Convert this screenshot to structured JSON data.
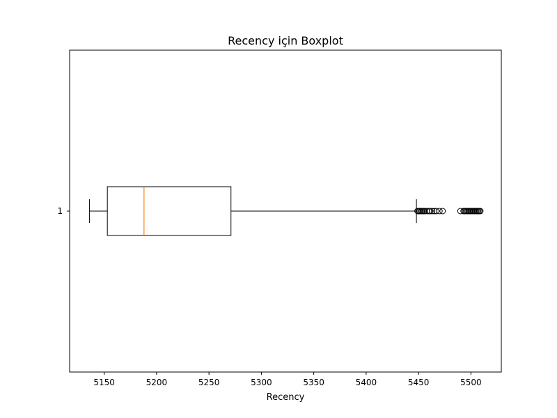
{
  "chart_data": {
    "type": "boxplot",
    "orientation": "horizontal",
    "title": "Recency için Boxplot",
    "xlabel": "Recency",
    "ylabel": "",
    "xlim": [
      5117,
      5529
    ],
    "x_ticks": [
      5150,
      5200,
      5250,
      5300,
      5350,
      5400,
      5450,
      5500
    ],
    "y_ticks": [
      "1"
    ],
    "grid": false,
    "colors": {
      "box": "#000000",
      "median": "#ff7f0e",
      "whisker": "#000000",
      "outlier": "#000000"
    },
    "boxes": [
      {
        "label": "1",
        "whisker_low": 5136,
        "q1": 5153,
        "median": 5188,
        "q3": 5271,
        "whisker_high": 5448,
        "outliers": [
          5449,
          5450,
          5451,
          5452,
          5453,
          5454,
          5455,
          5456,
          5458,
          5460,
          5461,
          5463,
          5465,
          5467,
          5470,
          5473,
          5490,
          5493,
          5494,
          5495,
          5496,
          5497,
          5498,
          5499,
          5500,
          5501,
          5502,
          5503,
          5504,
          5505,
          5506,
          5507,
          5508,
          5509
        ]
      }
    ]
  }
}
